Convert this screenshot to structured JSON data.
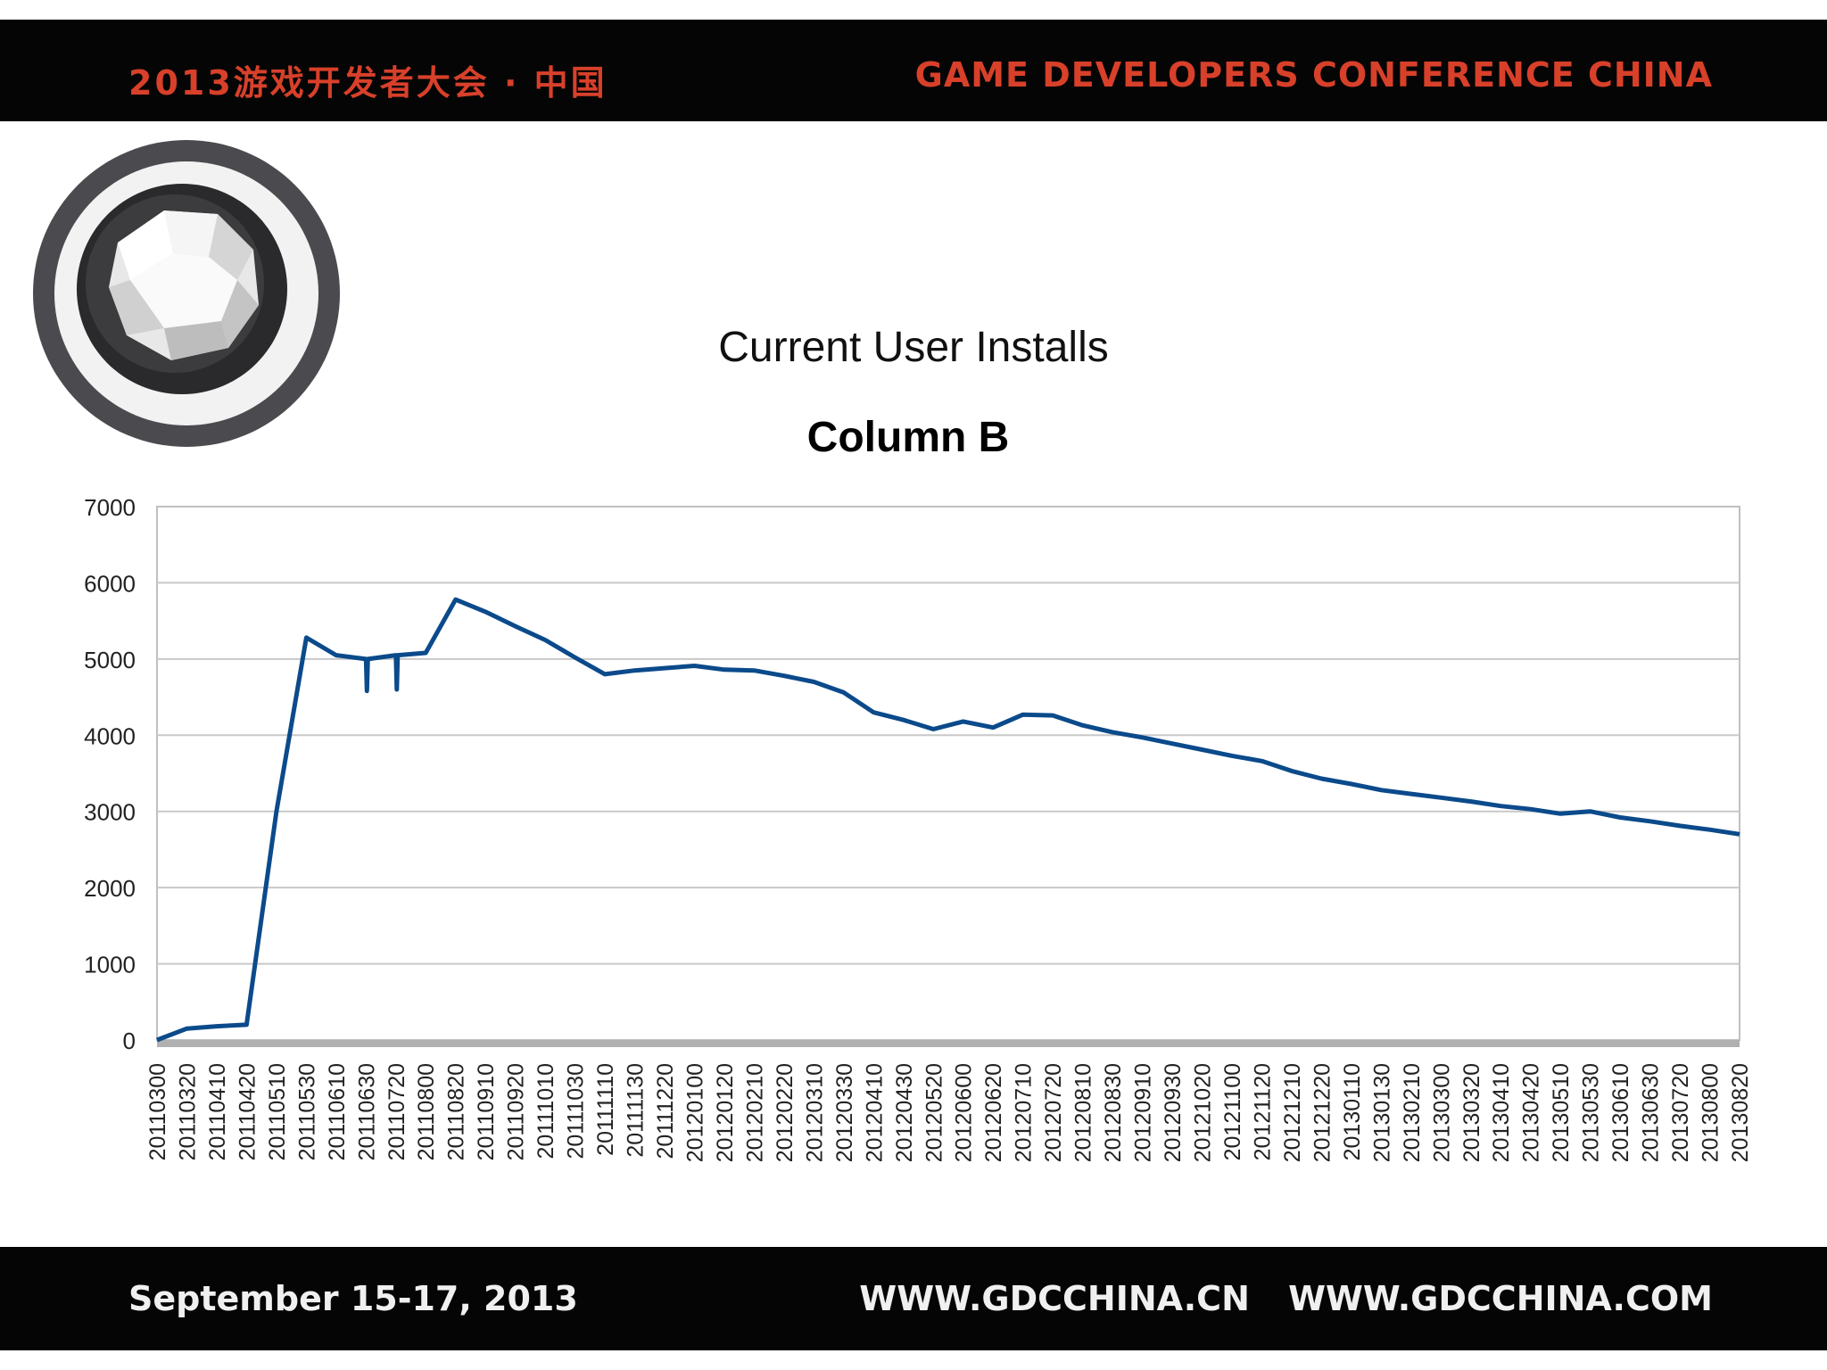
{
  "header": {
    "cn_title": "2013游戏开发者大会 · 中国",
    "en_title": "GAME DEVELOPERS CONFERENCE CHINA"
  },
  "footer": {
    "date": "September 15-17, 2013",
    "urls": "WWW.GDCCHINA.CN WWW.GDCCHINA.COM"
  },
  "slide_title": "Current User Installs",
  "logo": {
    "icon": "gem-logo-icon"
  },
  "colors": {
    "line": "#0b4a8b",
    "grid": "#c8c8c8",
    "bar": "#050505",
    "accent": "#d8402a"
  },
  "chart_data": {
    "type": "line",
    "title": "Column B",
    "xlabel": "",
    "ylabel": "",
    "ylim": [
      0,
      7000
    ],
    "yticks": [
      0,
      1000,
      2000,
      3000,
      4000,
      5000,
      6000,
      7000
    ],
    "grid": true,
    "legend": "none",
    "categories": [
      "20110300",
      "20110320",
      "20110410",
      "20110420",
      "20110510",
      "20110530",
      "20110610",
      "20110630",
      "20110720",
      "20110800",
      "20110820",
      "20110910",
      "20110920",
      "20111010",
      "20111030",
      "20111110",
      "20111130",
      "20111220",
      "20120100",
      "20120120",
      "20120210",
      "20120220",
      "20120310",
      "20120330",
      "20120410",
      "20120430",
      "20120520",
      "20120600",
      "20120620",
      "20120710",
      "20120720",
      "20120810",
      "20120830",
      "20120910",
      "20120930",
      "20121020",
      "20121100",
      "20121120",
      "20121210",
      "20121220",
      "20130110",
      "20130130",
      "20130210",
      "20130300",
      "20130320",
      "20130410",
      "20130420",
      "20130510",
      "20130530",
      "20130610",
      "20130630",
      "20130720",
      "20130800",
      "20130820"
    ],
    "series": [
      {
        "values": [
          0,
          150,
          180,
          200,
          3000,
          5280,
          5050,
          5000,
          5050,
          5080,
          5780,
          5620,
          5430,
          5250,
          5020,
          4800,
          4850,
          4880,
          4910,
          4860,
          4850,
          4780,
          4700,
          4560,
          4300,
          4200,
          4080,
          4180,
          4100,
          4270,
          4260,
          4130,
          4040,
          3970,
          3890,
          3810,
          3730,
          3660,
          3530,
          3430,
          3360,
          3280,
          3230,
          3180,
          3130,
          3070,
          3030,
          2970,
          3000,
          2920,
          2870,
          2810,
          2760,
          2700
        ],
        "dips": [
          {
            "x": "20110630",
            "value": 4580
          },
          {
            "x": "20110720",
            "value": 4600
          }
        ]
      }
    ]
  }
}
